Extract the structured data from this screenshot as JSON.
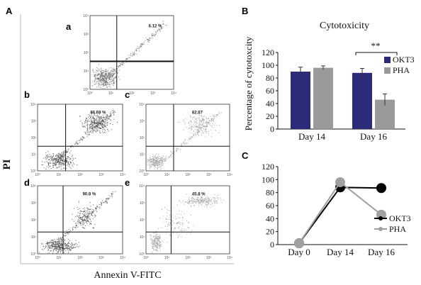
{
  "panels": {
    "A": "A",
    "B": "B",
    "C": "C"
  },
  "flow": {
    "x_label": "Annexin V-FITC",
    "y_label": "PI",
    "tick_labels": [
      "10⁰",
      "10¹",
      "10²",
      "10³",
      "10⁴"
    ],
    "plots": [
      {
        "letter": "a",
        "percent": "6.12 %",
        "color": "#7a7a7a"
      },
      {
        "letter": "b",
        "percent": "86.69 %",
        "color": "#555555"
      },
      {
        "letter": "c",
        "percent": "82.87",
        "color": "#a8a8a8"
      },
      {
        "letter": "d",
        "percent": "90.8 %",
        "color": "#555555"
      },
      {
        "letter": "e",
        "percent": "45.8 %",
        "color": "#a8a8a8"
      }
    ]
  },
  "chart_data": [
    {
      "type": "bar",
      "title": "Cytotoxicity",
      "ylabel": "Percentage of cytotoxcity",
      "xlabel": "",
      "ylim": [
        0,
        120
      ],
      "yticks": [
        "0",
        "20",
        "40",
        "60",
        "80",
        "100",
        "120"
      ],
      "categories": [
        "Day 14",
        "Day 16"
      ],
      "series": [
        {
          "name": "OKT3",
          "values": [
            90,
            88
          ],
          "errors": [
            7,
            7
          ],
          "color": "#2b2b7a"
        },
        {
          "name": "PHA",
          "values": [
            96,
            46
          ],
          "errors": [
            3,
            9
          ],
          "color": "#9a9a9a"
        }
      ],
      "annotation": "**",
      "legend": "right"
    },
    {
      "type": "line",
      "xlabel": "",
      "ylabel": "",
      "ylim": [
        0,
        120
      ],
      "yticks": [
        "0",
        "20",
        "40",
        "60",
        "80",
        "100",
        "120"
      ],
      "categories": [
        "Day 0",
        "Day 14",
        "Day 16"
      ],
      "series": [
        {
          "name": "OKT3",
          "values": [
            2,
            88,
            87
          ],
          "color": "#000000"
        },
        {
          "name": "PHA",
          "values": [
            2,
            96,
            46
          ],
          "color": "#a0a0a0"
        }
      ],
      "legend": "bottom-right"
    }
  ]
}
